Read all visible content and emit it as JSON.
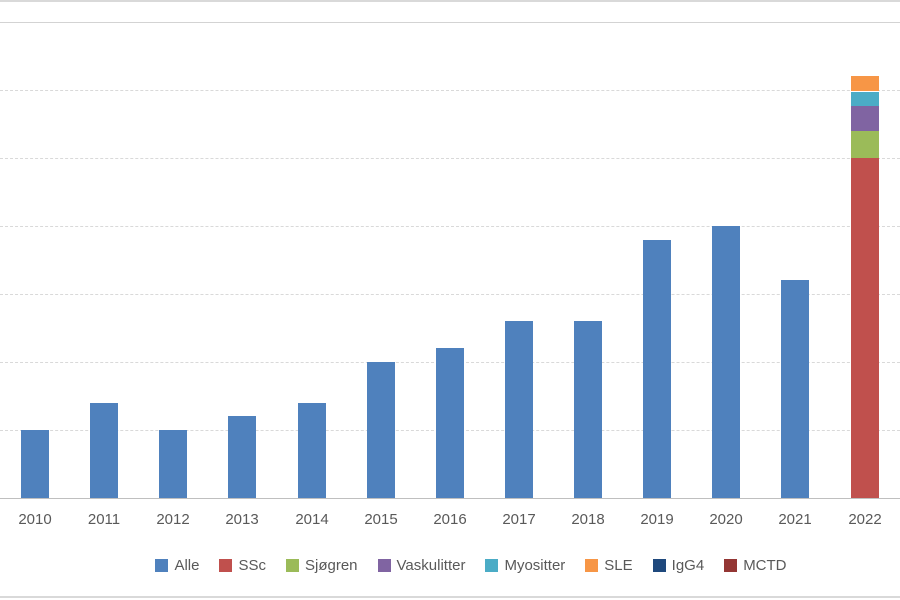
{
  "chart_data": {
    "type": "bar",
    "stacked": true,
    "title": "",
    "xlabel": "",
    "ylabel": "",
    "categories": [
      "2010",
      "2011",
      "2012",
      "2013",
      "2014",
      "2015",
      "2016",
      "2017",
      "2018",
      "2019",
      "2020",
      "2021",
      "2022"
    ],
    "series": [
      {
        "name": "Alle",
        "color": "#4F81BD",
        "values": [
          1.0,
          1.4,
          1.0,
          1.2,
          1.4,
          2.0,
          2.2,
          2.6,
          2.6,
          3.8,
          4.0,
          3.2,
          0
        ]
      },
      {
        "name": "SSc",
        "color": "#C0504D",
        "values": [
          0,
          0,
          0,
          0,
          0,
          0,
          0,
          0,
          0,
          0,
          0,
          0,
          5.0
        ]
      },
      {
        "name": "Sjøgren",
        "color": "#9BBB59",
        "values": [
          0,
          0,
          0,
          0,
          0,
          0,
          0,
          0,
          0,
          0,
          0,
          0,
          0.4
        ]
      },
      {
        "name": "Vaskulitter",
        "color": "#8064A2",
        "values": [
          0,
          0,
          0,
          0,
          0,
          0,
          0,
          0,
          0,
          0,
          0,
          0,
          0.37
        ]
      },
      {
        "name": "Myositter",
        "color": "#4BACC6",
        "values": [
          0,
          0,
          0,
          0,
          0,
          0,
          0,
          0,
          0,
          0,
          0,
          0,
          0.21
        ]
      },
      {
        "name": "SLE",
        "color": "#F79646",
        "values": [
          0,
          0,
          0,
          0,
          0,
          0,
          0,
          0,
          0,
          0,
          0,
          0,
          0.22
        ]
      },
      {
        "name": "IgG4",
        "color": "#1F497D",
        "values": [
          0,
          0,
          0,
          0,
          0,
          0,
          0,
          0,
          0,
          0,
          0,
          0,
          0
        ]
      },
      {
        "name": "MCTD",
        "color": "#943634",
        "values": [
          0,
          0,
          0,
          0,
          0,
          0,
          0,
          0,
          0,
          0,
          0,
          0,
          0
        ]
      }
    ],
    "ylim": [
      0,
      7
    ],
    "y_axis": {
      "tick_labels_visible": false,
      "note": "no y-axis tick labels visible; values estimated in gridline units (1 unit = one gridline interval)"
    },
    "grid": {
      "horizontal": true,
      "line_count": 8,
      "color": "#d9d9d9",
      "style": "dashed"
    },
    "legend_position": "bottom",
    "colors": {
      "axis_line": "#bfbfbf",
      "tick_label_text": "#595959",
      "legend_text": "#595959",
      "chart_border": "#d9d9d9",
      "background": "#ffffff"
    }
  }
}
